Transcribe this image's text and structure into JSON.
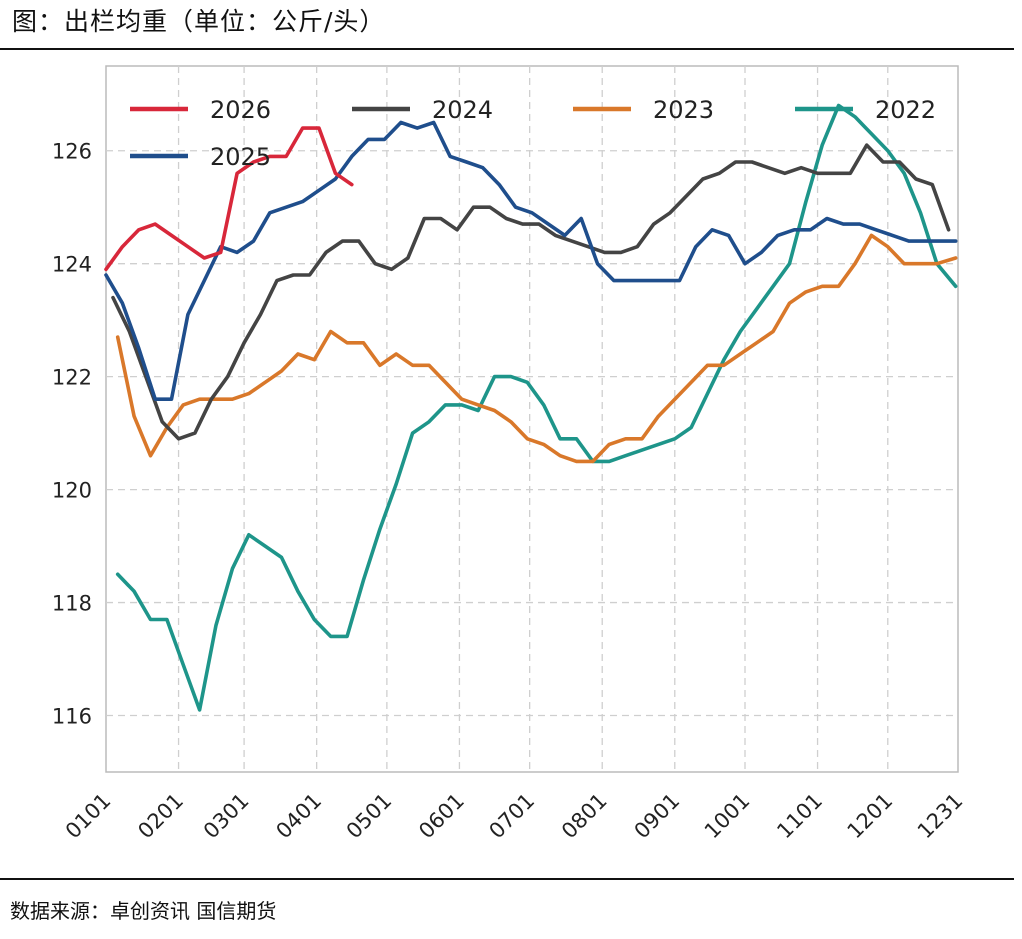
{
  "header": {
    "title": "图：出栏均重（单位：公斤/头）"
  },
  "footer": {
    "source": "数据来源：卓创资讯 国信期货"
  },
  "chart_data": {
    "type": "line",
    "title": "出栏均重（单位：公斤/头）",
    "xlabel": "",
    "ylabel": "",
    "x_range": [
      1,
      365
    ],
    "ylim": [
      115,
      127.5
    ],
    "yticks": [
      116,
      118,
      120,
      122,
      124,
      126
    ],
    "xtick_labels": [
      "0101",
      "0201",
      "0301",
      "0401",
      "0501",
      "0601",
      "0701",
      "0801",
      "0901",
      "1001",
      "1101",
      "1201",
      "1231"
    ],
    "xtick_days": [
      1,
      32,
      60,
      91,
      121,
      152,
      182,
      213,
      244,
      274,
      305,
      335,
      365
    ],
    "grid": true,
    "legend_position": "top",
    "series": [
      {
        "name": "2026",
        "color": "#d8273a",
        "x": [
          1,
          8,
          15,
          22,
          29,
          36,
          43,
          50,
          57,
          64,
          71,
          78,
          85,
          92,
          99,
          106
        ],
        "y": [
          123.9,
          124.3,
          124.6,
          124.7,
          124.5,
          124.3,
          124.1,
          124.2,
          125.6,
          125.8,
          125.9,
          125.9,
          126.4,
          126.4,
          125.6,
          125.4
        ]
      },
      {
        "name": "2025",
        "color": "#1f4e8c",
        "x": [
          1,
          8,
          15,
          22,
          29,
          36,
          43,
          50,
          57,
          64,
          71,
          78,
          85,
          92,
          99,
          106,
          113,
          120,
          127,
          134,
          141,
          148,
          155,
          162,
          169,
          176,
          183,
          190,
          197,
          204,
          211,
          218,
          225,
          232,
          239,
          246,
          253,
          260,
          267,
          274,
          281,
          288,
          295,
          302,
          309,
          316,
          323,
          330,
          337,
          344,
          351,
          358,
          364
        ],
        "y": [
          123.8,
          123.3,
          122.5,
          121.6,
          121.6,
          123.1,
          123.7,
          124.3,
          124.2,
          124.4,
          124.9,
          125.0,
          125.1,
          125.3,
          125.5,
          125.9,
          126.2,
          126.2,
          126.5,
          126.4,
          126.5,
          125.9,
          125.8,
          125.7,
          125.4,
          125.0,
          124.9,
          124.7,
          124.5,
          124.8,
          124.0,
          123.7,
          123.7,
          123.7,
          123.7,
          123.7,
          124.3,
          124.6,
          124.5,
          124.0,
          124.2,
          124.5,
          124.6,
          124.6,
          124.8,
          124.7,
          124.7,
          124.6,
          124.5,
          124.4,
          124.4,
          124.4,
          124.4
        ]
      },
      {
        "name": "2024",
        "color": "#444444",
        "x": [
          4,
          11,
          18,
          25,
          32,
          39,
          46,
          53,
          60,
          67,
          74,
          81,
          88,
          95,
          102,
          109,
          116,
          123,
          130,
          137,
          144,
          151,
          158,
          165,
          172,
          179,
          186,
          193,
          200,
          207,
          214,
          221,
          228,
          235,
          242,
          249,
          256,
          263,
          270,
          277,
          284,
          291,
          298,
          305,
          312,
          319,
          326,
          333,
          340,
          347,
          354,
          361
        ],
        "y": [
          123.4,
          122.8,
          122.0,
          121.2,
          120.9,
          121.0,
          121.6,
          122.0,
          122.6,
          123.1,
          123.7,
          123.8,
          123.8,
          124.2,
          124.4,
          124.4,
          124.0,
          123.9,
          124.1,
          124.8,
          124.8,
          124.6,
          125.0,
          125.0,
          124.8,
          124.7,
          124.7,
          124.5,
          124.4,
          124.3,
          124.2,
          124.2,
          124.3,
          124.7,
          124.9,
          125.2,
          125.5,
          125.6,
          125.8,
          125.8,
          125.7,
          125.6,
          125.7,
          125.6,
          125.6,
          125.6,
          126.1,
          125.8,
          125.8,
          125.5,
          125.4,
          124.6
        ]
      },
      {
        "name": "2023",
        "color": "#d9782a",
        "x": [
          6,
          13,
          20,
          27,
          34,
          41,
          48,
          55,
          62,
          69,
          76,
          83,
          90,
          97,
          104,
          111,
          118,
          125,
          132,
          139,
          146,
          153,
          160,
          167,
          174,
          181,
          188,
          195,
          202,
          209,
          216,
          223,
          230,
          237,
          244,
          251,
          258,
          265,
          272,
          279,
          286,
          293,
          300,
          307,
          314,
          321,
          328,
          335,
          342,
          349,
          356,
          364
        ],
        "y": [
          122.7,
          121.3,
          120.6,
          121.1,
          121.5,
          121.6,
          121.6,
          121.6,
          121.7,
          121.9,
          122.1,
          122.4,
          122.3,
          122.8,
          122.6,
          122.6,
          122.2,
          122.4,
          122.2,
          122.2,
          121.9,
          121.6,
          121.5,
          121.4,
          121.2,
          120.9,
          120.8,
          120.6,
          120.5,
          120.5,
          120.8,
          120.9,
          120.9,
          121.3,
          121.6,
          121.9,
          122.2,
          122.2,
          122.4,
          122.6,
          122.8,
          123.3,
          123.5,
          123.6,
          123.6,
          124.0,
          124.5,
          124.3,
          124.0,
          124.0,
          124.0,
          124.1
        ]
      },
      {
        "name": "2022",
        "color": "#1e958a",
        "x": [
          6,
          13,
          20,
          27,
          34,
          41,
          48,
          55,
          62,
          69,
          76,
          83,
          90,
          97,
          104,
          111,
          118,
          125,
          132,
          139,
          146,
          153,
          160,
          167,
          174,
          181,
          188,
          195,
          202,
          209,
          216,
          223,
          230,
          237,
          244,
          251,
          258,
          265,
          272,
          279,
          286,
          293,
          300,
          307,
          314,
          321,
          328,
          335,
          342,
          349,
          356,
          364
        ],
        "y": [
          118.5,
          118.2,
          117.7,
          117.7,
          116.9,
          116.1,
          117.6,
          118.6,
          119.2,
          119.0,
          118.8,
          118.2,
          117.7,
          117.4,
          117.4,
          118.4,
          119.3,
          120.1,
          121.0,
          121.2,
          121.5,
          121.5,
          121.4,
          122.0,
          122.0,
          121.9,
          121.5,
          120.9,
          120.9,
          120.5,
          120.5,
          120.6,
          120.7,
          120.8,
          120.9,
          121.1,
          121.7,
          122.3,
          122.8,
          123.2,
          123.6,
          124.0,
          125.1,
          126.1,
          126.8,
          126.6,
          126.3,
          126.0,
          125.6,
          124.9,
          124.0,
          123.6
        ]
      }
    ]
  }
}
